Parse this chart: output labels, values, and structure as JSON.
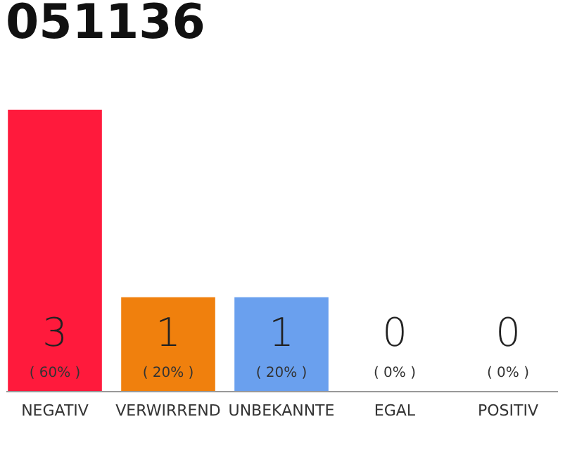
{
  "chart_data": {
    "type": "bar",
    "title": "051136",
    "categories": [
      "NEGATIV",
      "VERWIRREND",
      "UNBEKANNTE",
      "EGAL",
      "POSITIV"
    ],
    "values": [
      3,
      1,
      1,
      0,
      0
    ],
    "colors": [
      "#ff1a3c",
      "#f0800d",
      "#6aa0ee",
      "#eeeeee",
      "#eeeeee"
    ],
    "data_labels": true,
    "annotations": [
      "( 60% )",
      "( 20% )",
      "( 20% )",
      "( 0% )",
      "( 0% )"
    ]
  }
}
